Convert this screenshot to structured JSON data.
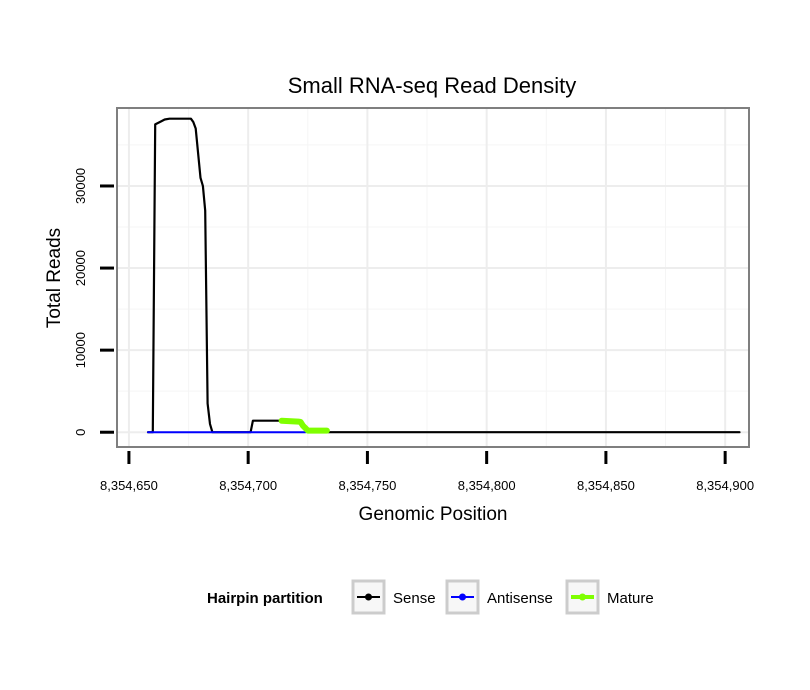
{
  "chart_data": {
    "type": "line",
    "title": "Small RNA-seq Read Density",
    "xlabel": "Genomic Position",
    "ylabel": "Total Reads",
    "xlim": [
      8354645,
      8354910
    ],
    "ylim": [
      -1800,
      39500
    ],
    "x_ticks": [
      8354650,
      8354700,
      8354750,
      8354800,
      8354850,
      8354900
    ],
    "x_tick_labels": [
      "8,354,650",
      "8,354,700",
      "8,354,750",
      "8,354,800",
      "8,354,850",
      "8,354,900"
    ],
    "y_ticks": [
      0,
      10000,
      20000,
      30000
    ],
    "y_tick_labels": [
      "0",
      "10000",
      "20000",
      "30000"
    ],
    "grid": true,
    "legend": {
      "title": "Hairpin partition",
      "position": "bottom"
    },
    "series": [
      {
        "name": "Sense",
        "color": "#000000",
        "points": [
          [
            8354658,
            0
          ],
          [
            8354660,
            0
          ],
          [
            8354661,
            37500
          ],
          [
            8354663,
            37800
          ],
          [
            8354665,
            38100
          ],
          [
            8354667,
            38200
          ],
          [
            8354676,
            38200
          ],
          [
            8354677,
            37800
          ],
          [
            8354678,
            37000
          ],
          [
            8354680,
            31000
          ],
          [
            8354681,
            30000
          ],
          [
            8354682,
            27000
          ],
          [
            8354683,
            3500
          ],
          [
            8354684,
            1000
          ],
          [
            8354685,
            0
          ],
          [
            8354701,
            0
          ],
          [
            8354702,
            1400
          ],
          [
            8354713,
            1400
          ],
          [
            8354714,
            1200
          ],
          [
            8354722,
            1200
          ],
          [
            8354723,
            800
          ],
          [
            8354724,
            600
          ],
          [
            8354725,
            200
          ],
          [
            8354732,
            0
          ],
          [
            8354906,
            0
          ]
        ]
      },
      {
        "name": "Antisense",
        "color": "#0000ff",
        "points": [
          [
            8354658,
            0
          ],
          [
            8354724,
            0
          ]
        ]
      },
      {
        "name": "Mature",
        "color": "#7fff00",
        "points": [
          [
            8354714,
            1400
          ],
          [
            8354721,
            1300
          ],
          [
            8354722,
            1250
          ],
          [
            8354723,
            800
          ],
          [
            8354724,
            500
          ],
          [
            8354725,
            200
          ],
          [
            8354733,
            200
          ]
        ]
      }
    ]
  }
}
